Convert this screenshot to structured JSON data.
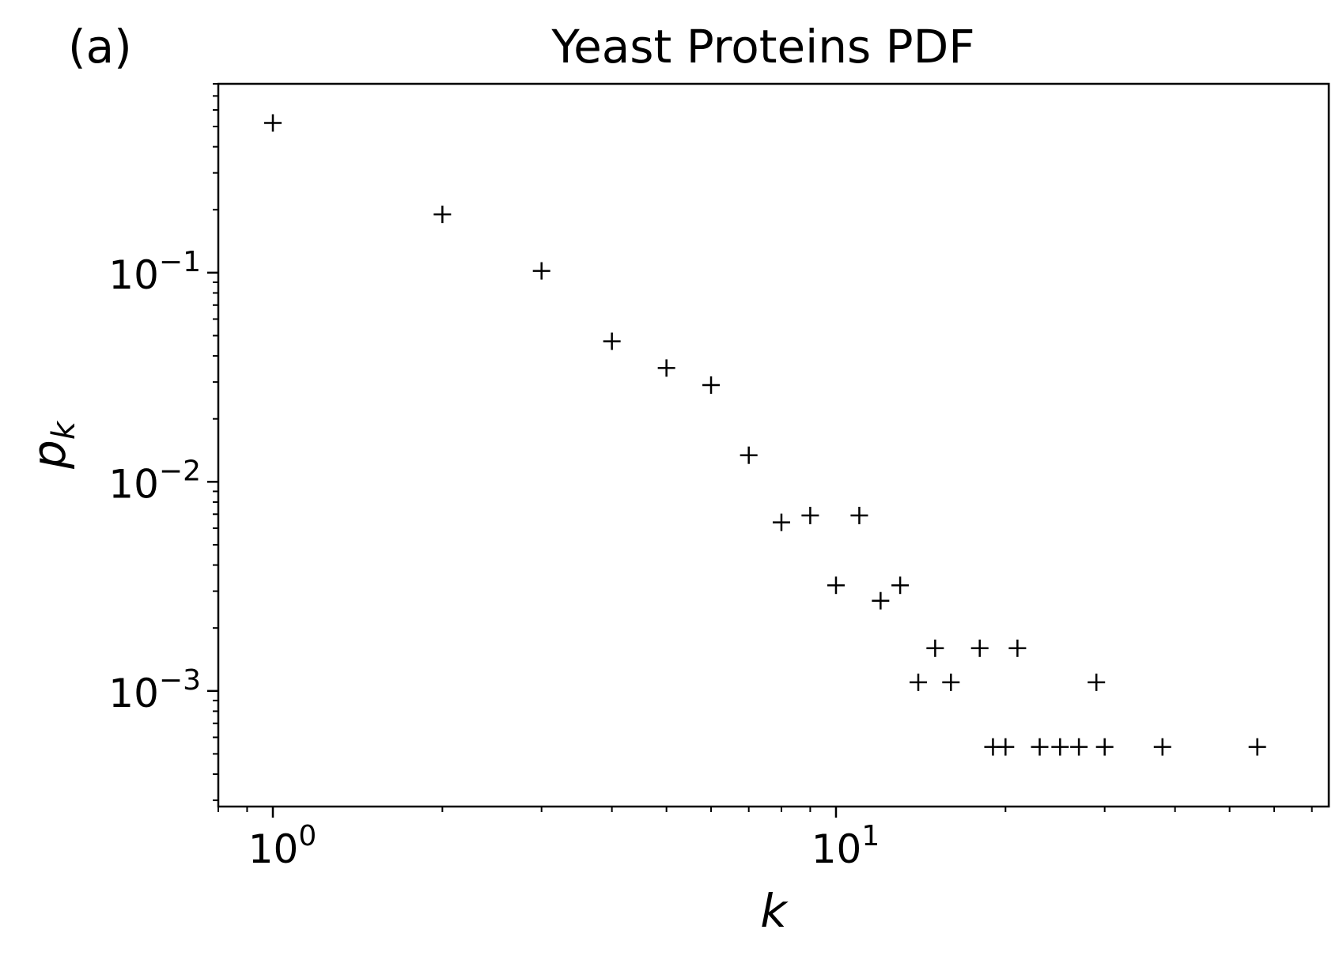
{
  "panel_label": "(a)",
  "chart_data": {
    "type": "scatter",
    "title": "Yeast Proteins PDF",
    "xlabel": "k",
    "ylabel": "p_k",
    "xscale": "log",
    "yscale": "log",
    "xlim": [
      0.8,
      75
    ],
    "ylim": [
      0.00028,
      0.8
    ],
    "grid": false,
    "marker": "+",
    "color": "#000000",
    "x_ticks": [
      {
        "value": 1,
        "base": "10",
        "exp": "0"
      },
      {
        "value": 10,
        "base": "10",
        "exp": "1"
      }
    ],
    "y_ticks": [
      {
        "value": 0.1,
        "base": "10",
        "exp": "−1"
      },
      {
        "value": 0.01,
        "base": "10",
        "exp": "−2"
      },
      {
        "value": 0.001,
        "base": "10",
        "exp": "−3"
      }
    ],
    "points": [
      {
        "x": 1,
        "y": 0.52
      },
      {
        "x": 2,
        "y": 0.19
      },
      {
        "x": 3,
        "y": 0.102
      },
      {
        "x": 4,
        "y": 0.047
      },
      {
        "x": 5,
        "y": 0.035
      },
      {
        "x": 6,
        "y": 0.029
      },
      {
        "x": 7,
        "y": 0.0134
      },
      {
        "x": 8,
        "y": 0.0064
      },
      {
        "x": 9,
        "y": 0.0069
      },
      {
        "x": 10,
        "y": 0.0032
      },
      {
        "x": 11,
        "y": 0.0069
      },
      {
        "x": 12,
        "y": 0.0027
      },
      {
        "x": 13,
        "y": 0.0032
      },
      {
        "x": 14,
        "y": 0.0011
      },
      {
        "x": 15,
        "y": 0.0016
      },
      {
        "x": 16,
        "y": 0.0011
      },
      {
        "x": 18,
        "y": 0.0016
      },
      {
        "x": 19,
        "y": 0.00054
      },
      {
        "x": 20,
        "y": 0.00054
      },
      {
        "x": 21,
        "y": 0.0016
      },
      {
        "x": 23,
        "y": 0.00054
      },
      {
        "x": 25,
        "y": 0.00054
      },
      {
        "x": 27,
        "y": 0.00054
      },
      {
        "x": 29,
        "y": 0.0011
      },
      {
        "x": 30,
        "y": 0.00054
      },
      {
        "x": 38,
        "y": 0.00054
      },
      {
        "x": 56,
        "y": 0.00054
      }
    ]
  }
}
